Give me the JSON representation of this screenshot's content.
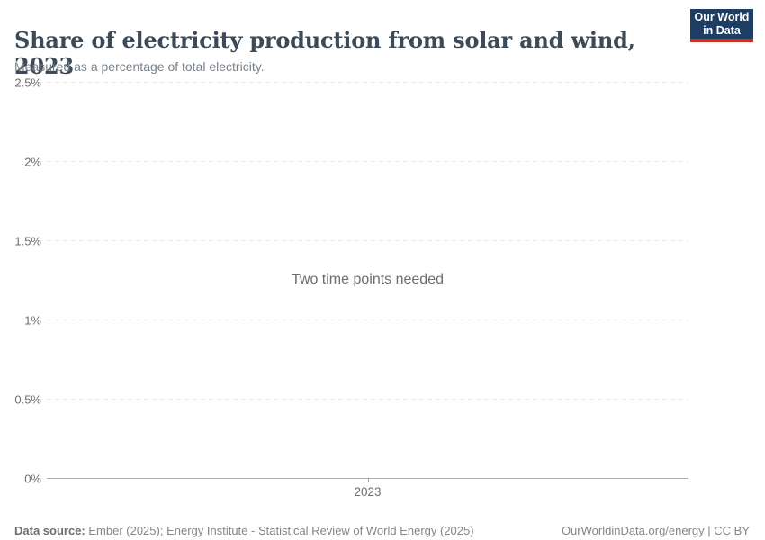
{
  "header": {
    "title": "Share of electricity production from solar and wind, 2023",
    "subtitle": "Measured as a percentage of total electricity.",
    "logo": {
      "line1": "Our World",
      "line2": "in Data",
      "background_color": "#1d3d63",
      "accent_color": "#c7342c"
    }
  },
  "chart_data": {
    "type": "line",
    "title": "Share of electricity production from solar and wind, 2023",
    "subtitle": "Measured as a percentage of total electricity.",
    "series": [],
    "empty_state_message": "Two time points needed",
    "ylabel": "",
    "xlabel": "",
    "ylim": [
      0,
      2.5
    ],
    "grid": true,
    "legend": "none",
    "y_ticks": [
      {
        "value": 0,
        "label": "0%"
      },
      {
        "value": 0.5,
        "label": "0.5%"
      },
      {
        "value": 1,
        "label": "1%"
      },
      {
        "value": 1.5,
        "label": "1.5%"
      },
      {
        "value": 2,
        "label": "2%"
      },
      {
        "value": 2.5,
        "label": "2.5%"
      }
    ],
    "x_ticks": [
      {
        "label": "2023"
      }
    ]
  },
  "footer": {
    "source_label": "Data source:",
    "source_text": " Ember (2025); Energy Institute - Statistical Review of World Energy (2025)",
    "attribution": "OurWorldinData.org/energy | CC BY"
  },
  "colors": {
    "title_text": "#3d4a57",
    "muted_text": "#858585",
    "axis_tick_text": "#6e6e6e",
    "gridline": "#e7e7e7",
    "axis_line": "#adadad"
  }
}
